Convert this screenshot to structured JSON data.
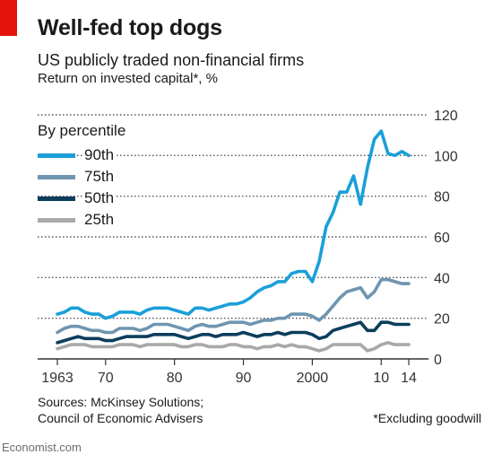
{
  "header": {
    "title": "Well-fed top dogs",
    "subtitle": "US publicly traded non-financial firms",
    "unit": "Return on invested capital*, %"
  },
  "legend": {
    "title": "By percentile",
    "items": [
      {
        "label": "90th",
        "color": "#1a9fd9"
      },
      {
        "label": "75th",
        "color": "#6f95b0"
      },
      {
        "label": "50th",
        "color": "#0c3e5c"
      },
      {
        "label": "25th",
        "color": "#a9a9a9"
      }
    ]
  },
  "footer": {
    "source_line1": "Sources: McKinsey Solutions;",
    "source_line2": "Council of Economic Advisers",
    "footnote": "*Excluding goodwill",
    "logo": "Economist.com"
  },
  "colors": {
    "accent_red": "#e3120b",
    "gridline": "#555555",
    "axis": "#333333"
  },
  "chart_data": {
    "type": "line",
    "title": "Well-fed top dogs",
    "subtitle": "US publicly traded non-financial firms",
    "ylabel": "Return on invested capital*, %",
    "xlim": [
      1963,
      2014
    ],
    "ylim": [
      0,
      120
    ],
    "yticks": [
      0,
      20,
      40,
      60,
      80,
      100,
      120
    ],
    "ytick_labels": [
      "0",
      "20",
      "40",
      "60",
      "80",
      "100",
      "120"
    ],
    "xticks": [
      1963,
      1970,
      1980,
      1990,
      2000,
      2010,
      2014
    ],
    "xtick_labels": [
      "1963",
      "70",
      "80",
      "90",
      "2000",
      "10",
      "14"
    ],
    "grid": "horizontal dotted",
    "legend_position": "top-left",
    "x": [
      1963,
      1964,
      1965,
      1966,
      1967,
      1968,
      1969,
      1970,
      1971,
      1972,
      1973,
      1974,
      1975,
      1976,
      1977,
      1978,
      1979,
      1980,
      1981,
      1982,
      1983,
      1984,
      1985,
      1986,
      1987,
      1988,
      1989,
      1990,
      1991,
      1992,
      1993,
      1994,
      1995,
      1996,
      1997,
      1998,
      1999,
      2000,
      2001,
      2002,
      2003,
      2004,
      2005,
      2006,
      2007,
      2008,
      2009,
      2010,
      2011,
      2012,
      2013,
      2014
    ],
    "series": [
      {
        "name": "90th",
        "color": "#1a9fd9",
        "values": [
          22,
          23,
          25,
          25,
          23,
          22,
          22,
          20,
          21,
          23,
          23,
          23,
          22,
          24,
          25,
          25,
          25,
          24,
          23,
          22,
          25,
          25,
          24,
          25,
          26,
          27,
          27,
          28,
          30,
          33,
          35,
          36,
          38,
          38,
          42,
          43,
          43,
          38,
          48,
          65,
          72,
          82,
          82,
          90,
          76,
          94,
          108,
          112,
          101,
          100,
          102,
          100
        ]
      },
      {
        "name": "75th",
        "color": "#6f95b0",
        "values": [
          13,
          15,
          16,
          16,
          15,
          14,
          14,
          13,
          13,
          15,
          15,
          15,
          14,
          15,
          17,
          17,
          17,
          16,
          15,
          14,
          16,
          17,
          16,
          16,
          17,
          18,
          18,
          18,
          17,
          18,
          19,
          19,
          20,
          20,
          22,
          22,
          22,
          21,
          19,
          22,
          26,
          30,
          33,
          34,
          35,
          30,
          33,
          39,
          39,
          38,
          37,
          37
        ]
      },
      {
        "name": "50th",
        "color": "#0c3e5c",
        "values": [
          8,
          9,
          10,
          11,
          10,
          10,
          10,
          9,
          9,
          10,
          11,
          11,
          11,
          11,
          12,
          12,
          12,
          12,
          11,
          10,
          11,
          12,
          12,
          11,
          12,
          12,
          12,
          13,
          12,
          11,
          12,
          12,
          13,
          12,
          13,
          13,
          13,
          12,
          10,
          11,
          14,
          15,
          16,
          17,
          18,
          14,
          14,
          18,
          18,
          17,
          17,
          17
        ]
      },
      {
        "name": "25th",
        "color": "#a9a9a9",
        "values": [
          5,
          6,
          7,
          7,
          7,
          6,
          6,
          6,
          6,
          7,
          7,
          7,
          6,
          7,
          7,
          7,
          7,
          7,
          6,
          6,
          7,
          7,
          6,
          6,
          6,
          7,
          7,
          6,
          6,
          5,
          6,
          6,
          7,
          6,
          7,
          6,
          6,
          5,
          4,
          5,
          7,
          7,
          7,
          7,
          7,
          4,
          5,
          7,
          8,
          7,
          7,
          7
        ]
      }
    ]
  }
}
